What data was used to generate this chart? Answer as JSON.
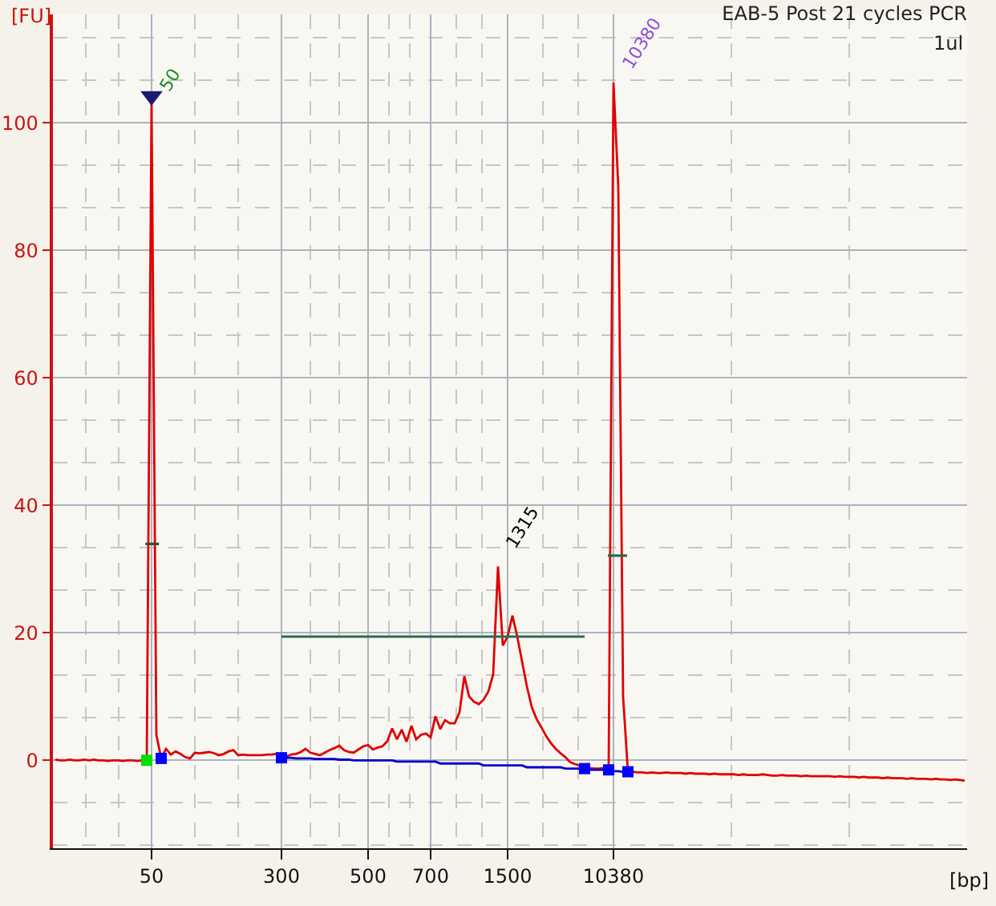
{
  "chart_data": {
    "type": "line",
    "title": "EAB-5 Post 21 cycles PCR",
    "subtitle": "1ul",
    "xlabel": "[bp]",
    "ylabel": "[FU]",
    "categories": [
      null,
      null,
      null,
      null,
      null,
      null,
      null,
      null,
      null,
      null,
      null,
      null,
      null,
      null,
      null,
      null,
      null,
      null,
      null,
      null,
      "50",
      null,
      null,
      null,
      null,
      null,
      null,
      null,
      null,
      null,
      null,
      null,
      null,
      null,
      null,
      null,
      null,
      null,
      null,
      null,
      null,
      null,
      null,
      null,
      null,
      null,
      null,
      "300",
      null,
      null,
      null,
      null,
      null,
      null,
      null,
      null,
      null,
      null,
      null,
      null,
      null,
      null,
      null,
      null,
      null,
      "500",
      null,
      null,
      null,
      null,
      null,
      null,
      null,
      null,
      null,
      null,
      null,
      null,
      "700",
      null,
      null,
      null,
      null,
      null,
      null,
      null,
      null,
      null,
      null,
      null,
      null,
      null,
      null,
      null,
      "1500",
      null,
      null,
      null,
      null,
      null,
      null,
      null,
      null,
      null,
      null,
      null,
      null,
      null,
      null,
      null,
      null,
      null,
      null,
      null,
      null,
      null,
      "10380",
      null,
      null,
      null,
      null,
      null,
      null,
      null,
      null,
      null,
      null,
      null,
      null,
      null,
      null,
      null,
      null,
      null,
      null,
      null,
      null,
      null,
      null,
      null,
      null,
      null,
      null,
      null,
      null,
      null,
      null,
      null,
      null,
      null,
      null,
      null,
      null,
      null,
      null,
      null,
      null,
      null,
      null,
      null,
      null,
      null,
      null,
      null,
      null,
      null,
      null,
      null,
      null,
      null,
      null,
      null,
      null,
      null,
      null,
      null,
      null,
      null,
      null,
      null,
      null,
      null,
      null,
      null,
      null,
      null,
      null,
      null,
      null,
      null
    ],
    "ylim": [
      -13.8,
      117
    ],
    "yticks": [
      0,
      20,
      40,
      60,
      80,
      100
    ],
    "grid": true,
    "series": [
      {
        "color": "#e00000",
        "values": [
          0.1,
          0.0,
          0.0,
          0.1,
          0.0,
          0.0,
          0.1,
          0.0,
          0.1,
          0.0,
          0.0,
          -0.1,
          0.0,
          0.0,
          -0.1,
          0.0,
          0.0,
          -0.1,
          0.0,
          0.0,
          103,
          4.0,
          0.3,
          1.8,
          0.9,
          1.4,
          1.0,
          0.5,
          0.3,
          1.2,
          1.1,
          1.2,
          1.3,
          1.1,
          0.8,
          1.0,
          1.4,
          1.6,
          0.8,
          0.9,
          0.8,
          0.8,
          0.8,
          0.8,
          0.9,
          0.9,
          1.0,
          0.4,
          0.6,
          0.9,
          1.0,
          1.3,
          1.8,
          1.2,
          1.0,
          0.8,
          1.2,
          1.6,
          1.9,
          2.3,
          1.6,
          1.3,
          1.2,
          1.7,
          2.2,
          2.4,
          1.7,
          2.0,
          2.2,
          3.0,
          5.0,
          3.3,
          4.8,
          2.9,
          5.4,
          3.3,
          4.0,
          4.2,
          3.6,
          6.9,
          4.9,
          6.3,
          5.8,
          5.8,
          7.5,
          13.2,
          10.0,
          9.2,
          8.8,
          9.5,
          10.8,
          13.5,
          30.4,
          18.0,
          19.4,
          22.7,
          19.4,
          15.5,
          11.6,
          8.4,
          6.5,
          5.2,
          3.8,
          2.7,
          1.8,
          1.1,
          0.5,
          -0.3,
          -0.6,
          -0.8,
          -1.2,
          -1.2,
          -1.3,
          -1.3,
          -1.2,
          -1.1,
          106.3,
          90,
          10,
          -1.8,
          -1.8,
          -1.9,
          -1.9,
          -2.0,
          -1.9,
          -2.0,
          -2.0,
          -1.9,
          -2.0,
          -2.0,
          -2.0,
          -2.1,
          -2.0,
          -2.1,
          -2.1,
          -2.1,
          -2.2,
          -2.1,
          -2.2,
          -2.2,
          -2.2,
          -2.2,
          -2.3,
          -2.2,
          -2.3,
          -2.3,
          -2.3,
          -2.2,
          -2.3,
          -2.4,
          -2.4,
          -2.3,
          -2.4,
          -2.4,
          -2.4,
          -2.5,
          -2.4,
          -2.5,
          -2.5,
          -2.5,
          -2.5,
          -2.5,
          -2.6,
          -2.5,
          -2.6,
          -2.6,
          -2.6,
          -2.7,
          -2.6,
          -2.7,
          -2.7,
          -2.7,
          -2.8,
          -2.7,
          -2.8,
          -2.8,
          -2.8,
          -2.9,
          -2.8,
          -2.9,
          -2.9,
          -2.9,
          -3.0,
          -2.9,
          -3.0,
          -3.0,
          -3.1,
          -3.0,
          -3.1,
          -3.2
        ]
      },
      {
        "color": "#0000cc",
        "values": [
          null,
          null,
          null,
          null,
          null,
          null,
          null,
          null,
          null,
          null,
          null,
          null,
          null,
          null,
          null,
          null,
          null,
          null,
          null,
          null,
          null,
          null,
          null,
          null,
          null,
          null,
          null,
          null,
          null,
          null,
          null,
          null,
          null,
          null,
          null,
          null,
          null,
          null,
          null,
          null,
          null,
          null,
          null,
          null,
          null,
          null,
          null,
          0.4,
          0.4,
          0.4,
          0.3,
          0.3,
          0.3,
          0.3,
          0.2,
          0.2,
          0.2,
          0.2,
          0.2,
          0.1,
          0.1,
          0.1,
          0.0,
          0.0,
          0.0,
          0.0,
          0.0,
          0.0,
          0.0,
          0.0,
          0.0,
          -0.2,
          -0.2,
          -0.2,
          -0.2,
          -0.2,
          -0.2,
          -0.2,
          -0.2,
          -0.2,
          -0.5,
          -0.5,
          -0.5,
          -0.5,
          -0.5,
          -0.5,
          -0.5,
          -0.5,
          -0.5,
          -0.8,
          -0.8,
          -0.8,
          -0.8,
          -0.8,
          -0.8,
          -0.8,
          -0.8,
          -0.8,
          -1.1,
          -1.1,
          -1.1,
          -1.1,
          -1.1,
          -1.1,
          -1.1,
          -1.1,
          -1.3,
          -1.3,
          -1.3,
          -1.3,
          -1.3,
          -1.5,
          -1.5,
          -1.5,
          -1.5,
          -1.5,
          -1.7,
          -1.7,
          -1.8,
          -1.8,
          null,
          null,
          null,
          null,
          null,
          null,
          null,
          null,
          null,
          null,
          null,
          null,
          null,
          null,
          null,
          null,
          null,
          null,
          null,
          null,
          null,
          null,
          null,
          null,
          null,
          null,
          null,
          null,
          null,
          null,
          null,
          null,
          null,
          null,
          null,
          null,
          null,
          null,
          null,
          null,
          null,
          null,
          null,
          null,
          null,
          null,
          null,
          null,
          null,
          null,
          null,
          null,
          null,
          null,
          null,
          null,
          null,
          null,
          null,
          null,
          null,
          null,
          null,
          null,
          null,
          null,
          null,
          null,
          null,
          null
        ]
      },
      {
        "color": "#2a6a50",
        "values": [
          null,
          null,
          null,
          null,
          null,
          null,
          null,
          null,
          null,
          null,
          null,
          null,
          null,
          null,
          null,
          null,
          null,
          null,
          null,
          null,
          null,
          null,
          null,
          null,
          null,
          null,
          null,
          null,
          null,
          null,
          null,
          null,
          null,
          null,
          null,
          null,
          null,
          null,
          null,
          null,
          null,
          null,
          null,
          null,
          null,
          null,
          null,
          19.4,
          19.4,
          19.4,
          19.4,
          19.4,
          19.4,
          19.4,
          19.4,
          19.4,
          19.4,
          19.4,
          19.4,
          19.4,
          19.4,
          19.4,
          19.4,
          19.4,
          19.4,
          19.4,
          19.4,
          19.4,
          19.4,
          19.4,
          19.4,
          19.4,
          19.4,
          19.4,
          19.4,
          19.4,
          19.4,
          19.4,
          19.4,
          19.4,
          19.4,
          19.4,
          19.4,
          19.4,
          19.4,
          19.4,
          19.4,
          19.4,
          19.4,
          19.4,
          19.4,
          19.4,
          19.4,
          19.4,
          19.4,
          19.4,
          19.4,
          19.4,
          19.4,
          19.4,
          19.4,
          19.4,
          19.4,
          19.4,
          19.4,
          19.4,
          19.4,
          19.4,
          19.4,
          19.4,
          19.4,
          null,
          null,
          null,
          null,
          null,
          null,
          null,
          null,
          null,
          null,
          null,
          null,
          null,
          null,
          null,
          null,
          null,
          null,
          null,
          null,
          null,
          null,
          null,
          null,
          null,
          null,
          null,
          null,
          null,
          null,
          null,
          null,
          null,
          null,
          null,
          null,
          null,
          null,
          null,
          null,
          null,
          null,
          null,
          null,
          null,
          null,
          null,
          null,
          null,
          null,
          null,
          null,
          null,
          null,
          null,
          null,
          null,
          null,
          null,
          null,
          null,
          null,
          null,
          null,
          null,
          null,
          null,
          null,
          null,
          null,
          null,
          null,
          null,
          null,
          null,
          null,
          null,
          null,
          null
        ]
      },
      {
        "type": "scatter",
        "marker": "square",
        "color": "#0000ff",
        "values": [
          null,
          null,
          null,
          null,
          null,
          null,
          null,
          null,
          null,
          null,
          null,
          null,
          null,
          null,
          null,
          null,
          null,
          null,
          null,
          null,
          null,
          null,
          0.3,
          null,
          null,
          null,
          null,
          null,
          null,
          null,
          null,
          null,
          null,
          null,
          null,
          null,
          null,
          null,
          null,
          null,
          null,
          null,
          null,
          null,
          null,
          null,
          null,
          0.4,
          null,
          null,
          null,
          null,
          null,
          null,
          null,
          null,
          null,
          null,
          null,
          null,
          null,
          null,
          null,
          null,
          null,
          null,
          null,
          null,
          null,
          null,
          null,
          null,
          null,
          null,
          null,
          null,
          null,
          null,
          null,
          null,
          null,
          null,
          null,
          null,
          null,
          null,
          null,
          null,
          null,
          null,
          null,
          null,
          null,
          null,
          null,
          null,
          null,
          null,
          null,
          null,
          null,
          null,
          null,
          null,
          null,
          null,
          null,
          null,
          null,
          null,
          -1.3,
          null,
          null,
          null,
          null,
          -1.5,
          null,
          null,
          null,
          -1.8,
          null,
          null,
          null,
          null,
          null,
          null,
          null,
          null,
          null,
          null,
          null,
          null,
          null,
          null,
          null,
          null,
          null,
          null,
          null,
          null,
          null,
          null,
          null,
          null,
          null,
          null,
          null,
          null,
          null,
          null,
          null,
          null,
          null,
          null,
          null,
          null,
          null,
          null,
          null,
          null,
          null,
          null,
          null,
          null,
          null,
          null,
          null,
          null,
          null,
          null,
          null,
          null,
          null,
          null,
          null,
          null,
          null,
          null,
          null,
          null,
          null,
          null,
          null,
          null,
          null,
          null,
          null,
          null,
          null,
          null
        ]
      },
      {
        "type": "scatter",
        "marker": "square",
        "color": "#00e000",
        "values": [
          null,
          null,
          null,
          null,
          null,
          null,
          null,
          null,
          null,
          null,
          null,
          null,
          null,
          null,
          null,
          null,
          null,
          null,
          null,
          0.0,
          null,
          null,
          null,
          null,
          null,
          null,
          null,
          null,
          null,
          null,
          null,
          null,
          null,
          null,
          null,
          null,
          null,
          null,
          null,
          null,
          null,
          null,
          null,
          null,
          null,
          null,
          null,
          null,
          null,
          null,
          null,
          null,
          null,
          null,
          null,
          null,
          null,
          null,
          null,
          null,
          null,
          null,
          null,
          null,
          null,
          null,
          null,
          null,
          null,
          null,
          null,
          null,
          null,
          null,
          null,
          null,
          null,
          null,
          null,
          null,
          null,
          null,
          null,
          null,
          null,
          null,
          null,
          null,
          null,
          null,
          null,
          null,
          null,
          null,
          null,
          null,
          null,
          null,
          null,
          null,
          null,
          null,
          null,
          null,
          null,
          null,
          null,
          null,
          null,
          null,
          null,
          null,
          null,
          null,
          null,
          null,
          null,
          null,
          null,
          null,
          null,
          null,
          null,
          null,
          null,
          null,
          null,
          null,
          null,
          null,
          null,
          null,
          null,
          null,
          null,
          null,
          null,
          null,
          null,
          null,
          null,
          null,
          null,
          null,
          null,
          null,
          null,
          null,
          null,
          null,
          null,
          null,
          null,
          null,
          null,
          null,
          null,
          null,
          null,
          null,
          null,
          null,
          null,
          null,
          null,
          null,
          null,
          null,
          null,
          null,
          null,
          null,
          null,
          null,
          null,
          null,
          null,
          null,
          null,
          null,
          null,
          null,
          null,
          null,
          null,
          null,
          null,
          null,
          null,
          null
        ]
      },
      {
        "type": "scatter",
        "marker": "triangle",
        "color": "#1a1a6e",
        "values": [
          null,
          null,
          null,
          null,
          null,
          null,
          null,
          null,
          null,
          null,
          null,
          null,
          null,
          null,
          null,
          null,
          null,
          null,
          null,
          null,
          104.2,
          null,
          null,
          null,
          null,
          null,
          null,
          null,
          null,
          null,
          null,
          null,
          null,
          null,
          null,
          null,
          null,
          null,
          null,
          null,
          null,
          null,
          null,
          null,
          null,
          null,
          null,
          null,
          null,
          null,
          null,
          null,
          null,
          null,
          null,
          null,
          null,
          null,
          null,
          null,
          null,
          null,
          null,
          null,
          null,
          null,
          null,
          null,
          null,
          null,
          null,
          null,
          null,
          null,
          null,
          null,
          null,
          null,
          null,
          null,
          null,
          null,
          null,
          null,
          null,
          null,
          null,
          null,
          null,
          null,
          null,
          null,
          null,
          null,
          null,
          null,
          null,
          null,
          null,
          null,
          null,
          null,
          null,
          null,
          null,
          null,
          null,
          null,
          null,
          null,
          null,
          null,
          null,
          null,
          null,
          null,
          null,
          null,
          null,
          null,
          null,
          null,
          null,
          null,
          null,
          null,
          null,
          null,
          null,
          null,
          null,
          null,
          null,
          null,
          null,
          null,
          null,
          null,
          null,
          null,
          null,
          null,
          null,
          null,
          null,
          null,
          null,
          null,
          null,
          null,
          null,
          null,
          null,
          null,
          null,
          null,
          null,
          null,
          null,
          null,
          null,
          null,
          null,
          null,
          null,
          null,
          null,
          null,
          null,
          null,
          null,
          null,
          null,
          null,
          null,
          null,
          null,
          null,
          null,
          null,
          null,
          null,
          null,
          null,
          null,
          null,
          null,
          null,
          null,
          null
        ]
      }
    ],
    "annotations": [
      {
        "text": "50",
        "x": "50",
        "y": 103
      },
      {
        "text": "10380",
        "x": "10380",
        "y": 106.3
      },
      "1315"
    ]
  }
}
